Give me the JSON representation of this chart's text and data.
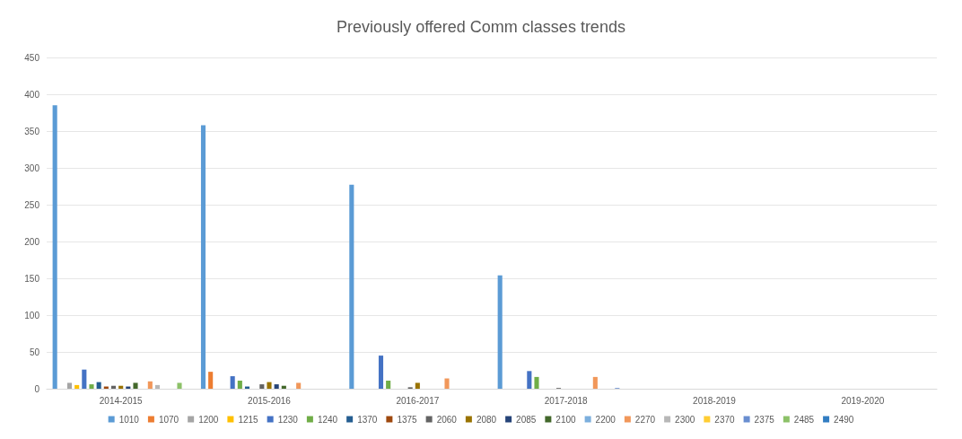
{
  "chart_data": {
    "type": "bar",
    "title": "Previously offered Comm classes trends",
    "categories": [
      "2014-2015",
      "2015-2016",
      "2016-2017",
      "2017-2018",
      "2018-2019",
      "2019-2020"
    ],
    "series": [
      {
        "name": "1010",
        "color": "#5b9bd5",
        "values": [
          385,
          358,
          277,
          154,
          0,
          0
        ]
      },
      {
        "name": "1070",
        "color": "#ed7d31",
        "values": [
          0,
          23,
          0,
          0,
          0,
          0
        ]
      },
      {
        "name": "1200",
        "color": "#a5a5a5",
        "values": [
          8,
          0,
          0,
          0,
          0,
          0
        ]
      },
      {
        "name": "1215",
        "color": "#ffc000",
        "values": [
          5,
          0,
          0,
          0,
          0,
          0
        ]
      },
      {
        "name": "1230",
        "color": "#4472c4",
        "values": [
          26,
          17,
          45,
          24,
          0,
          0
        ]
      },
      {
        "name": "1240",
        "color": "#70ad47",
        "values": [
          6,
          11,
          11,
          16,
          0,
          0
        ]
      },
      {
        "name": "1370",
        "color": "#255e91",
        "values": [
          9,
          3,
          0,
          0,
          0,
          0
        ]
      },
      {
        "name": "1375",
        "color": "#9e480e",
        "values": [
          3,
          0,
          0,
          0,
          0,
          0
        ]
      },
      {
        "name": "2060",
        "color": "#636363",
        "values": [
          4,
          6,
          2,
          1,
          0,
          0
        ]
      },
      {
        "name": "2080",
        "color": "#997300",
        "values": [
          4,
          9,
          8,
          0,
          0,
          0
        ]
      },
      {
        "name": "2085",
        "color": "#264478",
        "values": [
          3,
          6,
          0,
          0,
          0,
          0
        ]
      },
      {
        "name": "2100",
        "color": "#43682b",
        "values": [
          8,
          4,
          0,
          0,
          0,
          0
        ]
      },
      {
        "name": "2200",
        "color": "#7cafdd",
        "values": [
          0,
          0,
          0,
          0,
          0,
          0
        ]
      },
      {
        "name": "2270",
        "color": "#f1975a",
        "values": [
          10,
          8,
          14,
          16,
          0,
          0
        ]
      },
      {
        "name": "2300",
        "color": "#b7b7b7",
        "values": [
          5,
          0,
          0,
          0,
          0,
          0
        ]
      },
      {
        "name": "2370",
        "color": "#ffcd33",
        "values": [
          0,
          0,
          0,
          0,
          0,
          0
        ]
      },
      {
        "name": "2375",
        "color": "#698ed0",
        "values": [
          0,
          0,
          0,
          1,
          0,
          0
        ]
      },
      {
        "name": "2485",
        "color": "#8cc168",
        "values": [
          8,
          0,
          0,
          0,
          0,
          0
        ]
      },
      {
        "name": "2490",
        "color": "#327dc2",
        "values": [
          0,
          0,
          0,
          0,
          0,
          0
        ]
      }
    ],
    "ylim": [
      0,
      450
    ],
    "yticks": [
      0,
      50,
      100,
      150,
      200,
      250,
      300,
      350,
      400,
      450
    ],
    "grid": "y",
    "legend": "bottom"
  }
}
